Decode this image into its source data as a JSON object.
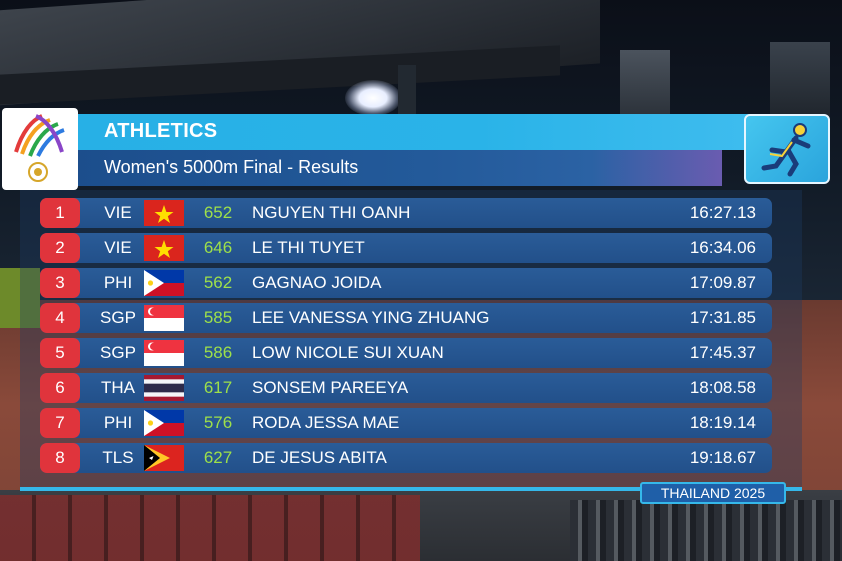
{
  "header": {
    "sport": "ATHLETICS",
    "event": "Women's 5000m Final - Results"
  },
  "results": [
    {
      "rank": "1",
      "country": "VIE",
      "flag": "vietnam-flag-icon",
      "bib": "652",
      "name": "NGUYEN THI OANH",
      "time": "16:27.13"
    },
    {
      "rank": "2",
      "country": "VIE",
      "flag": "vietnam-flag-icon",
      "bib": "646",
      "name": "LE THI TUYET",
      "time": "16:34.06"
    },
    {
      "rank": "3",
      "country": "PHI",
      "flag": "philippines-flag-icon",
      "bib": "562",
      "name": "GAGNAO JOIDA",
      "time": "17:09.87"
    },
    {
      "rank": "4",
      "country": "SGP",
      "flag": "singapore-flag-icon",
      "bib": "585",
      "name": "LEE VANESSA YING ZHUANG",
      "time": "17:31.85"
    },
    {
      "rank": "5",
      "country": "SGP",
      "flag": "singapore-flag-icon",
      "bib": "586",
      "name": "LOW NICOLE SUI XUAN",
      "time": "17:45.37"
    },
    {
      "rank": "6",
      "country": "THA",
      "flag": "thailand-flag-icon",
      "bib": "617",
      "name": "SONSEM PAREEYA",
      "time": "18:08.58"
    },
    {
      "rank": "7",
      "country": "PHI",
      "flag": "philippines-flag-icon",
      "bib": "576",
      "name": "RODA JESSA MAE",
      "time": "18:19.14"
    },
    {
      "rank": "8",
      "country": "TLS",
      "flag": "timor-leste-flag-icon",
      "bib": "627",
      "name": "DE JESUS ABITA",
      "time": "19:18.67"
    }
  ],
  "footer": {
    "tag": "THAILAND 2025"
  },
  "icons": {
    "games_logo": "sea-games-logo-icon",
    "sport_pictogram": "athletics-pictogram-icon"
  },
  "colors": {
    "header_blue": "#2ab3e8",
    "subheader_blue": "#235a9a",
    "row_blue": "#22508a",
    "rank_red": "#e0343c",
    "bib_green": "#9ee04a"
  }
}
